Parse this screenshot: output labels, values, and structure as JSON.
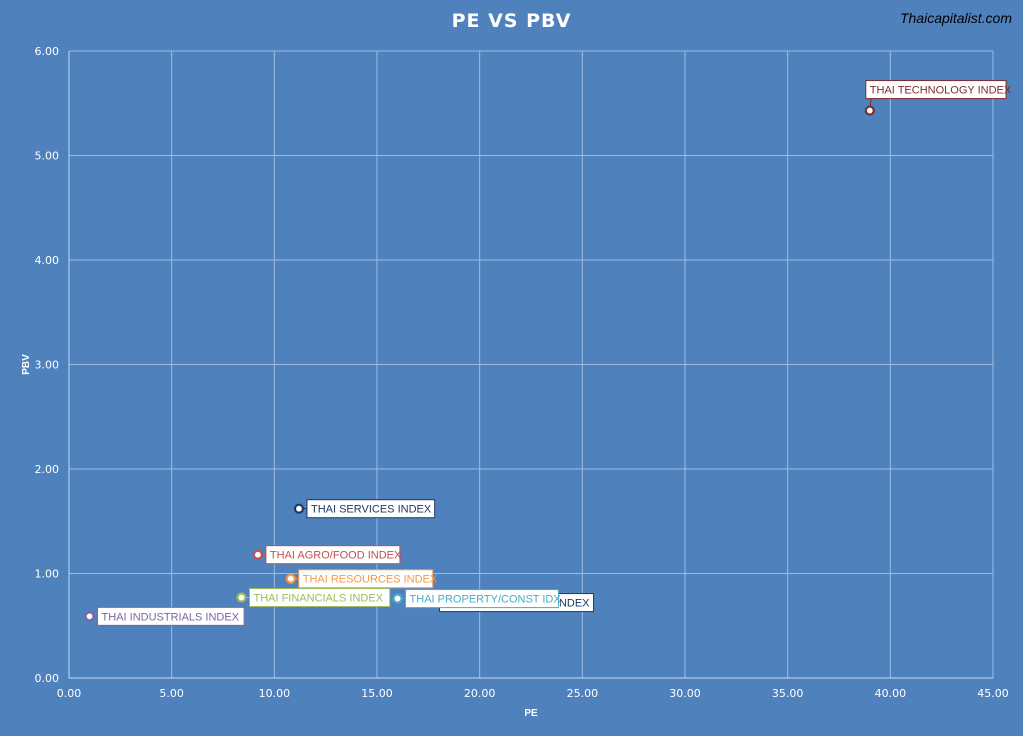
{
  "watermark": "Thaicapitalist.com",
  "chart_data": {
    "type": "scatter",
    "title": "PE VS PBV",
    "xlabel": "PE",
    "ylabel": "PBV",
    "xlim": [
      0,
      45
    ],
    "ylim": [
      0,
      6
    ],
    "x_ticks": [
      "0.00",
      "5.00",
      "10.00",
      "15.00",
      "20.00",
      "25.00",
      "30.00",
      "35.00",
      "40.00",
      "45.00"
    ],
    "y_ticks": [
      "0.00",
      "1.00",
      "2.00",
      "3.00",
      "4.00",
      "5.00",
      "6.00"
    ],
    "grid": true,
    "background": "#4f81bd",
    "points": [
      {
        "label": "THAI TECHNOLOGY INDEX",
        "x": 39.0,
        "y": 5.43,
        "color": "#7b2c2c",
        "label_side": "above"
      },
      {
        "label": "THAI SERVICES INDEX",
        "x": 11.2,
        "y": 1.62,
        "color": "#1f3864",
        "label_side": "right"
      },
      {
        "label": "THAI AGRO/FOOD INDEX",
        "x": 9.2,
        "y": 1.18,
        "color": "#c0504d",
        "label_side": "right"
      },
      {
        "label": "THAI RESOURCES INDEX",
        "x": 10.8,
        "y": 0.95,
        "color": "#f79646",
        "label_side": "right"
      },
      {
        "label": "THAI FINANCIALS INDEX",
        "x": 8.4,
        "y": 0.77,
        "color": "#9bbb59",
        "label_side": "right"
      },
      {
        "label": "THAI INDUSTRIALS INDEX",
        "x": 1.0,
        "y": 0.59,
        "color": "#8064a2",
        "label_side": "right"
      },
      {
        "label": "D INDEX",
        "x": 16.0,
        "y": 0.76,
        "color": "#1f3864",
        "label_side": "hidden"
      },
      {
        "label": "THAI PROPERTY/CONST IDX",
        "x": 16.0,
        "y": 0.76,
        "color": "#4bacc6",
        "label_side": "right"
      }
    ]
  }
}
